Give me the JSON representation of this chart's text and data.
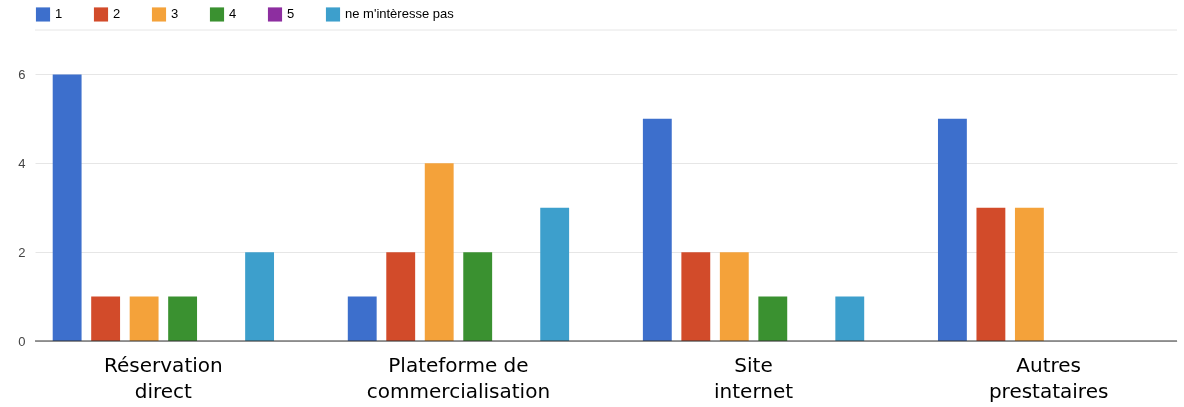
{
  "chart_data": {
    "type": "bar",
    "categories": [
      "Réservation direct",
      "Plateforme de commercialisation",
      "Site internet",
      "Autres prestataires"
    ],
    "series": [
      {
        "name": "1",
        "color": "#3d6fcc",
        "values": [
          6,
          1,
          5,
          5
        ]
      },
      {
        "name": "2",
        "color": "#d24b2a",
        "values": [
          1,
          2,
          2,
          3
        ]
      },
      {
        "name": "3",
        "color": "#f4a23a",
        "values": [
          1,
          4,
          2,
          3
        ]
      },
      {
        "name": "4",
        "color": "#3a9130",
        "values": [
          1,
          2,
          1,
          0
        ]
      },
      {
        "name": "5",
        "color": "#8d2ea0",
        "values": [
          0,
          0,
          0,
          0
        ]
      },
      {
        "name": "ne m'intèresse pas",
        "color": "#3d9fcc",
        "values": [
          2,
          3,
          1,
          0
        ]
      }
    ],
    "ylim": [
      0,
      7
    ],
    "yticks": [
      0,
      2,
      4,
      6
    ],
    "grid": "y",
    "legend": "top left"
  }
}
